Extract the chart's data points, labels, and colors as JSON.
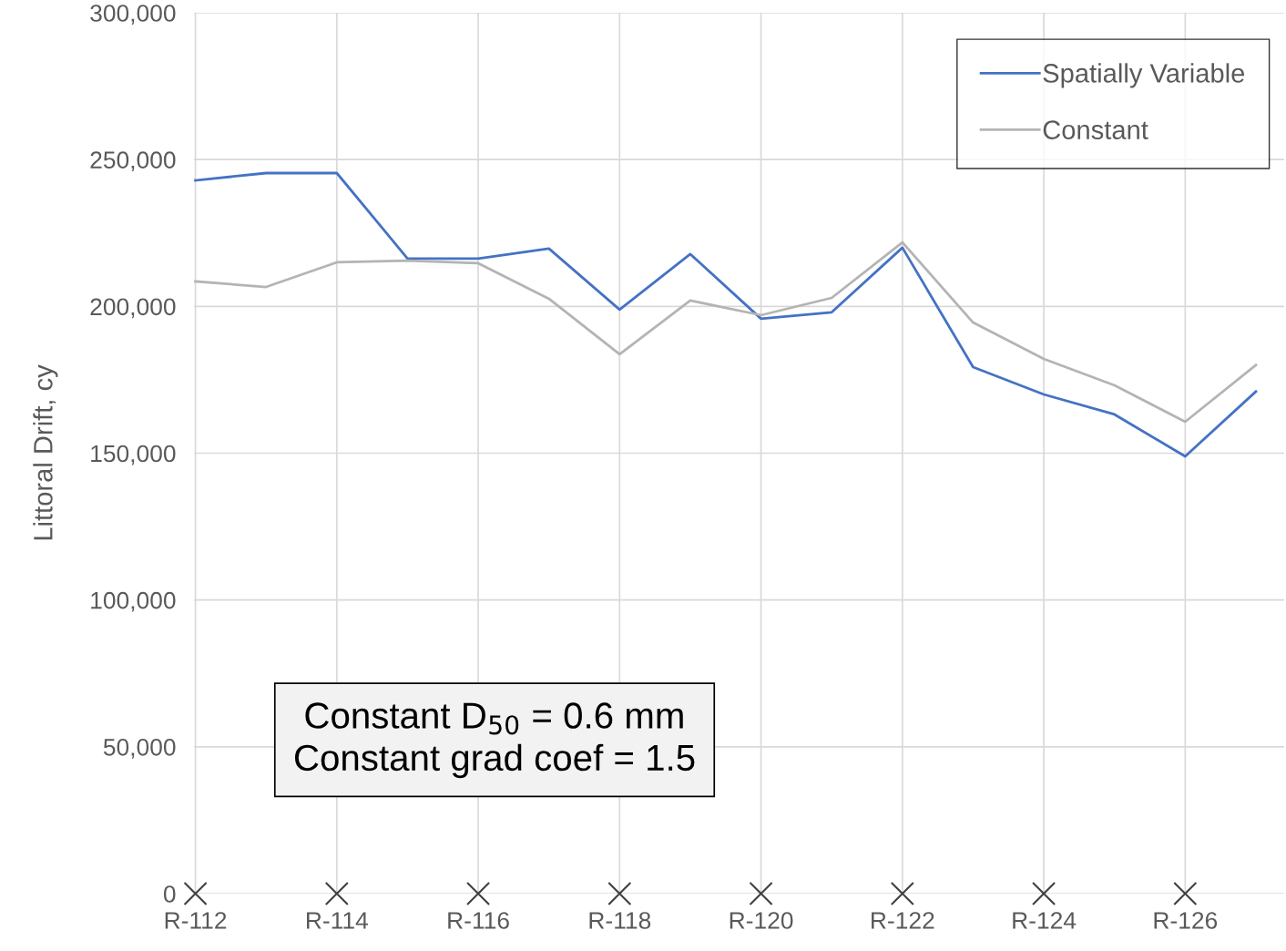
{
  "chart_data": {
    "type": "line",
    "ylabel": "Littoral Drift, cy",
    "grid": true,
    "legend": "top right",
    "ylim": [
      0,
      300000
    ],
    "yticks": [
      {
        "value": 0,
        "label": "0"
      },
      {
        "value": 50000,
        "label": "50,000"
      },
      {
        "value": 100000,
        "label": "100,000"
      },
      {
        "value": 150000,
        "label": "150,000"
      },
      {
        "value": 200000,
        "label": "200,000"
      },
      {
        "value": 250000,
        "label": "250,000"
      },
      {
        "value": 300000,
        "label": "300,000"
      }
    ],
    "categories": [
      "R-112",
      null,
      "R-114",
      null,
      "R-116",
      null,
      "R-118",
      null,
      "R-120",
      null,
      "R-122",
      null,
      "R-124",
      null,
      "R-126",
      null
    ],
    "series": [
      {
        "name": "Spatially Variable",
        "color": "#4472c4",
        "values": [
          242900,
          245400,
          245400,
          216300,
          216300,
          219700,
          198900,
          217800,
          195800,
          198000,
          220000,
          179300,
          170000,
          163200,
          148900,
          171000
        ]
      },
      {
        "name": "Constant",
        "color": "#b4b4b4",
        "values": [
          208500,
          206600,
          215000,
          215600,
          214700,
          202600,
          183700,
          202000,
          197000,
          202900,
          221800,
          194500,
          182100,
          173100,
          160700,
          180000
        ]
      },
      {
        "type": "scatter",
        "marker": "cross",
        "color": "#404040",
        "x": [
          "R-112",
          "R-114",
          "R-116",
          "R-118",
          "R-120",
          "R-122",
          "R-124",
          "R-126"
        ],
        "values": [
          0,
          0,
          0,
          0,
          0,
          0,
          0,
          0
        ]
      }
    ],
    "annotations": [
      "Constant D$_{50}$ = 0.6 mm\nConstant grad coef = 1.5"
    ]
  }
}
